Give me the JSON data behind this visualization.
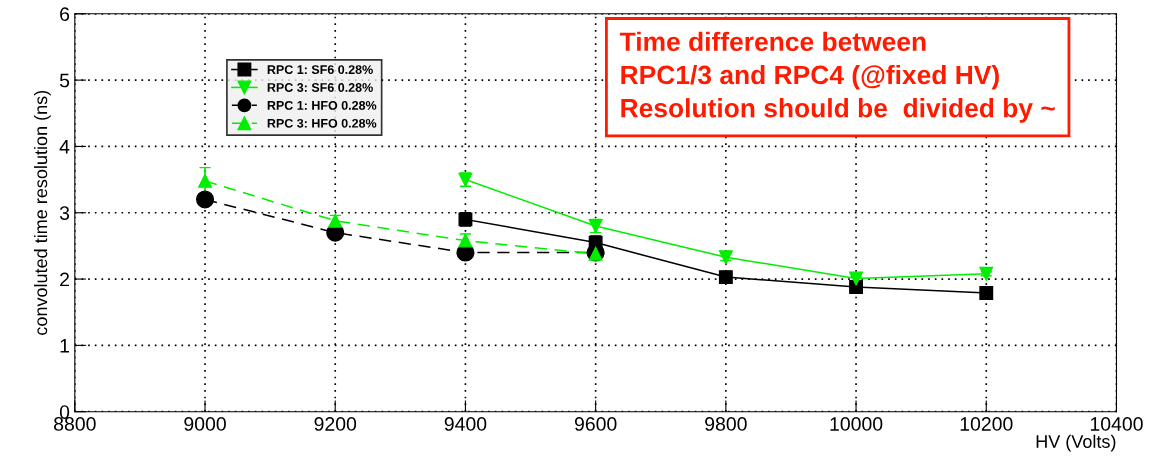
{
  "chart_data": {
    "type": "line",
    "xlabel": "HV (Volts)",
    "ylabel": "convoluted time resolution (ns)",
    "xlim": [
      8800,
      10400
    ],
    "xticks": [
      8800,
      9000,
      9200,
      9400,
      9600,
      9800,
      10000,
      10200,
      10400
    ],
    "ylim": [
      0,
      6
    ],
    "yticks": [
      0,
      1,
      2,
      3,
      4,
      5,
      6
    ],
    "grid": true,
    "legend": "top left",
    "series": [
      {
        "name": "RPC 1: SF6 0.28%",
        "color": "#000000",
        "marker": "square",
        "line_style": "solid",
        "x": [
          9400,
          9600,
          9800,
          10000,
          10200
        ],
        "values": [
          2.9,
          2.55,
          2.03,
          1.88,
          1.79
        ],
        "errors": [
          0.1,
          0.1,
          0.03,
          0.03,
          0.03
        ]
      },
      {
        "name": "RPC 3: SF6 0.28%",
        "color": "#00ee00",
        "marker": "triangle_down",
        "line_style": "solid",
        "x": [
          9400,
          9600,
          9800,
          10000,
          10200
        ],
        "values": [
          3.5,
          2.8,
          2.33,
          2.01,
          2.08
        ],
        "errors": [
          0.1,
          0.1,
          0.05,
          0.03,
          0.03
        ]
      },
      {
        "name": "RPC 1: HFO 0.28%",
        "color": "#000000",
        "marker": "circle",
        "line_style": "dashed",
        "x": [
          9000,
          9200,
          9400,
          9600
        ],
        "values": [
          3.2,
          2.7,
          2.4,
          2.4
        ],
        "errors": [
          0.08,
          0.08,
          0.08,
          0.08
        ]
      },
      {
        "name": "RPC 3: HFO 0.28%",
        "color": "#00ee00",
        "marker": "triangle",
        "line_style": "dashed",
        "x": [
          9000,
          9200,
          9400,
          9600
        ],
        "values": [
          3.48,
          2.88,
          2.58,
          2.38
        ],
        "errors": [
          0.2,
          0.08,
          0.1,
          0.08
        ]
      }
    ],
    "annotations": [
      "Time difference between\nRPC1/3 and RPC4 (@fixed HV)\nResolution should be  divided by ~"
    ]
  }
}
